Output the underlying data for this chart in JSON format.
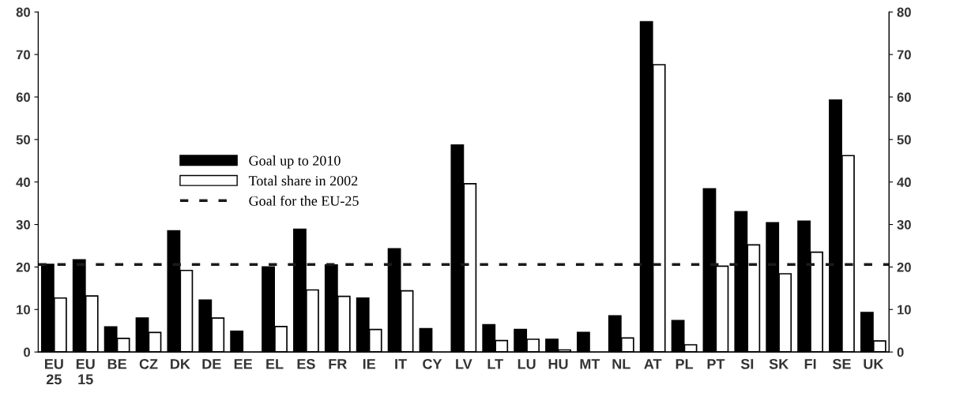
{
  "chart_data": {
    "type": "bar",
    "categories": [
      "EU\n25",
      "EU\n15",
      "BE",
      "CZ",
      "DK",
      "DE",
      "EE",
      "EL",
      "ES",
      "FR",
      "IE",
      "IT",
      "CY",
      "LV",
      "LT",
      "LU",
      "HU",
      "MT",
      "NL",
      "AT",
      "PL",
      "PT",
      "SI",
      "SK",
      "FI",
      "SE",
      "UK"
    ],
    "series": [
      {
        "name": "Goal up to 2010",
        "color": "#000000",
        "values": [
          20.6,
          21.7,
          5.9,
          8.0,
          28.5,
          12.2,
          4.9,
          20.0,
          28.9,
          20.5,
          12.7,
          24.3,
          5.5,
          48.7,
          6.4,
          5.3,
          3.0,
          4.6,
          8.5,
          77.7,
          7.4,
          38.4,
          33.0,
          30.4,
          30.8,
          59.3,
          9.3
        ]
      },
      {
        "name": "Total share in 2002",
        "color": "#ffffff",
        "values": [
          12.7,
          13.2,
          3.2,
          4.6,
          19.2,
          8.0,
          null,
          6.0,
          14.6,
          13.1,
          5.3,
          14.4,
          null,
          39.6,
          2.7,
          3.0,
          0.5,
          null,
          3.3,
          67.6,
          1.7,
          20.2,
          25.2,
          18.4,
          23.5,
          46.2,
          2.6
        ]
      }
    ],
    "ref_lines": [
      {
        "axis": "y",
        "value": 20.6,
        "label": "Goal for the EU-25",
        "color": "#1a1a1a",
        "line_style": "dashed"
      }
    ],
    "ylim": [
      0,
      80
    ],
    "yticks": [
      0,
      10,
      20,
      30,
      40,
      50,
      60,
      70,
      80
    ],
    "y2lim": [
      0,
      80
    ],
    "y2ticks": [
      0,
      10,
      20,
      30,
      40,
      50,
      60,
      70,
      80
    ],
    "legend": "center left",
    "grid": false
  }
}
